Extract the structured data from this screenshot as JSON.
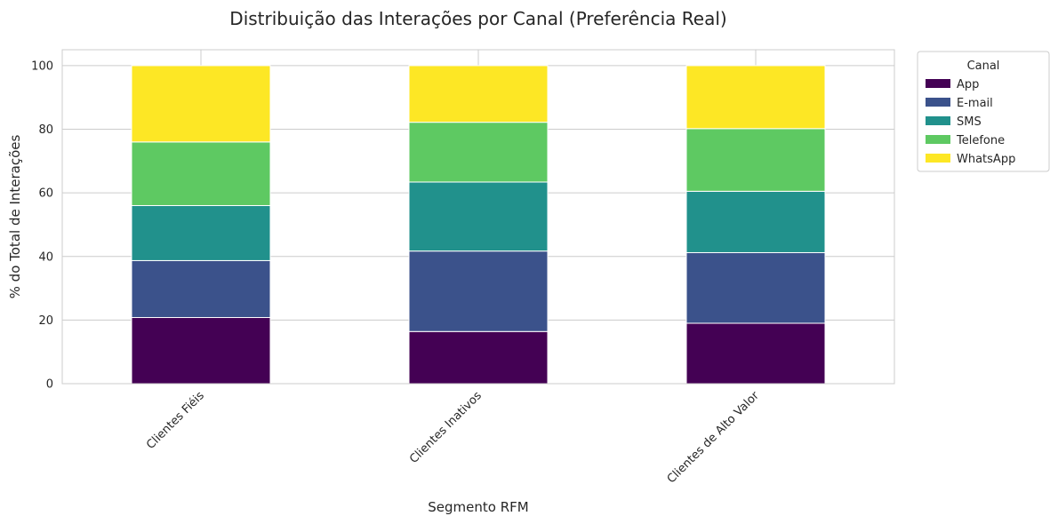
{
  "chart_data": {
    "type": "bar",
    "stacked": true,
    "title": "Distribuição das Interações por Canal (Preferência Real)",
    "xlabel": "Segmento RFM",
    "ylabel": "% do Total de Interações",
    "ylim": [
      0,
      105
    ],
    "yticks": [
      0,
      20,
      40,
      60,
      80,
      100
    ],
    "grid": true,
    "legend": {
      "title": "Canal",
      "placement": "outside-top-right"
    },
    "categories": [
      "Clientes Fiéis",
      "Clientes Inativos",
      "Clientes de Alto Valor"
    ],
    "series": [
      {
        "name": "App",
        "color": "#440154",
        "values": [
          20.8,
          16.4,
          19.0
        ]
      },
      {
        "name": "E-mail",
        "color": "#3b528b",
        "values": [
          17.9,
          25.3,
          22.2
        ]
      },
      {
        "name": "SMS",
        "color": "#21918c",
        "values": [
          17.3,
          21.7,
          19.3
        ]
      },
      {
        "name": "Telefone",
        "color": "#5ec962",
        "values": [
          20.0,
          18.8,
          19.7
        ]
      },
      {
        "name": "WhatsApp",
        "color": "#fde725",
        "values": [
          24.0,
          17.8,
          19.8
        ]
      }
    ]
  }
}
